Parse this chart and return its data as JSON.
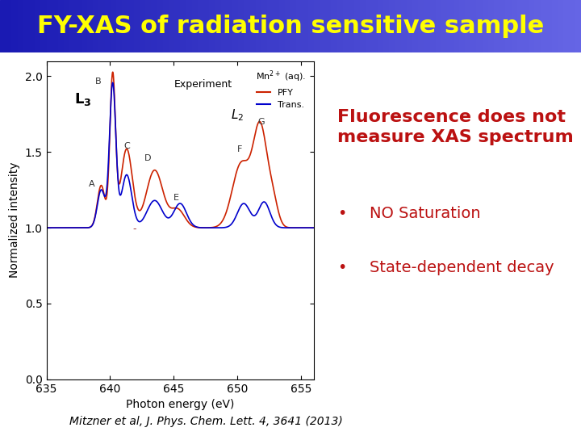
{
  "title": "FY-XAS of radiation sensitive sample",
  "title_bg_color": "#3333cc",
  "title_text_color": "#ffff00",
  "title_fontsize": 22,
  "plot_bg": "#ffffff",
  "xlabel": "Photon energy (eV)",
  "ylabel": "Normalized intensity",
  "xlim": [
    635,
    656
  ],
  "ylim": [
    0.0,
    2.1
  ],
  "yticks": [
    0.0,
    0.5,
    1.0,
    1.5,
    2.0
  ],
  "xticks": [
    635,
    640,
    645,
    650,
    655
  ],
  "pfy_color": "#cc2200",
  "trans_color": "#0000cc",
  "right_text_color": "#bb1111",
  "right_title": "Fluorescence does not\nmeasure XAS spectrum",
  "bullet1": "NO Saturation",
  "bullet2": "State-dependent decay",
  "footer": "Mitzner et al, J. Phys. Chem. Lett. 4, 3641 (2013)",
  "legend_title": "Mn²⁺ (aq).",
  "legend_experiment": "Experiment",
  "legend_pfy": "PFY",
  "legend_trans": "Trans."
}
